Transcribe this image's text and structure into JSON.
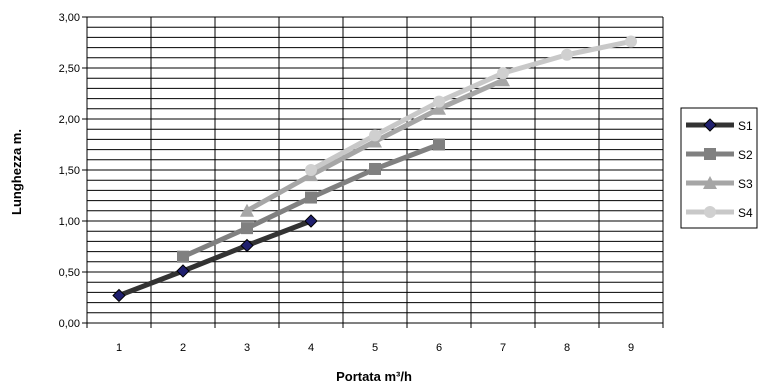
{
  "chart_data": {
    "type": "line",
    "title": "",
    "xlabel": "Portata m³/h",
    "ylabel": "Lunghezza m.",
    "categories": [
      "1",
      "2",
      "3",
      "4",
      "5",
      "6",
      "7",
      "8",
      "9"
    ],
    "x_ticks": [
      "1",
      "2",
      "3",
      "4",
      "5",
      "6",
      "7",
      "8",
      "9"
    ],
    "y_ticks": [
      "0,00",
      "0,50",
      "1,00",
      "1,50",
      "2,00",
      "2,50",
      "3,00"
    ],
    "ylim": [
      0,
      3
    ],
    "y_minor_step": 0.1,
    "grid": true,
    "legend_position": "right",
    "series": [
      {
        "name": "S1",
        "color": "#333333",
        "marker": "diamond",
        "marker_fill": "#1f1f6e",
        "x": [
          1,
          2,
          3,
          4
        ],
        "values": [
          0.27,
          0.51,
          0.76,
          1.0
        ]
      },
      {
        "name": "S2",
        "color": "#808080",
        "marker": "square",
        "marker_fill": "#808080",
        "x": [
          2,
          3,
          4,
          5,
          6
        ],
        "values": [
          0.65,
          0.93,
          1.23,
          1.51,
          1.75
        ]
      },
      {
        "name": "S3",
        "color": "#a6a6a6",
        "marker": "triangle",
        "marker_fill": "#a6a6a6",
        "x": [
          3,
          4,
          5,
          6,
          7
        ],
        "values": [
          1.1,
          1.45,
          1.78,
          2.1,
          2.38
        ]
      },
      {
        "name": "S4",
        "color": "#c8c8c8",
        "marker": "circle",
        "marker_fill": "#d0d0d0",
        "x": [
          4,
          5,
          6,
          7,
          8,
          9
        ],
        "values": [
          1.5,
          1.84,
          2.17,
          2.45,
          2.63,
          2.76
        ]
      }
    ]
  }
}
